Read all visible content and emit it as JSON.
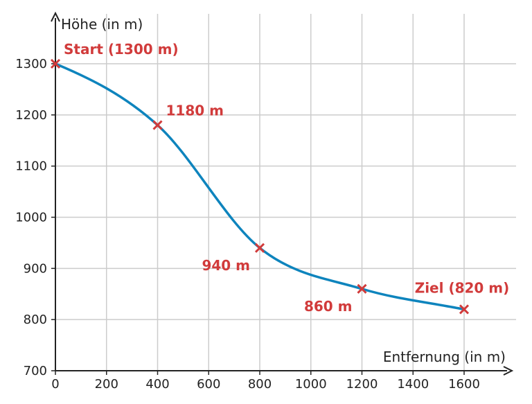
{
  "chart_data": {
    "type": "line",
    "title": "",
    "xlabel": "Entfernung (in m)",
    "ylabel": "Höhe (in m)",
    "xlim": [
      0,
      1800
    ],
    "ylim": [
      700,
      1300
    ],
    "xticks": [
      0,
      200,
      400,
      600,
      800,
      1000,
      1200,
      1400,
      1600
    ],
    "yticks": [
      700,
      800,
      900,
      1000,
      1100,
      1200,
      1300
    ],
    "grid": true,
    "series": [
      {
        "x": [
          0,
          400,
          800,
          1200,
          1600
        ],
        "y": [
          1300,
          1180,
          940,
          860,
          820
        ],
        "color": "#0e84bd"
      }
    ],
    "markers": [
      {
        "x": 0,
        "y": 1300,
        "label": "Start (1300 m)",
        "label_pos": "above-right"
      },
      {
        "x": 400,
        "y": 1180,
        "label": "1180 m",
        "label_pos": "above-right"
      },
      {
        "x": 800,
        "y": 940,
        "label": "940 m",
        "label_pos": "below-left"
      },
      {
        "x": 1200,
        "y": 860,
        "label": "860 m",
        "label_pos": "below-left"
      },
      {
        "x": 1600,
        "y": 820,
        "label": "Ziel (820 m)",
        "label_pos": "above"
      }
    ],
    "marker_color": "#d13b3b",
    "grid_color": "#cccccc",
    "axis_color": "#222222"
  }
}
